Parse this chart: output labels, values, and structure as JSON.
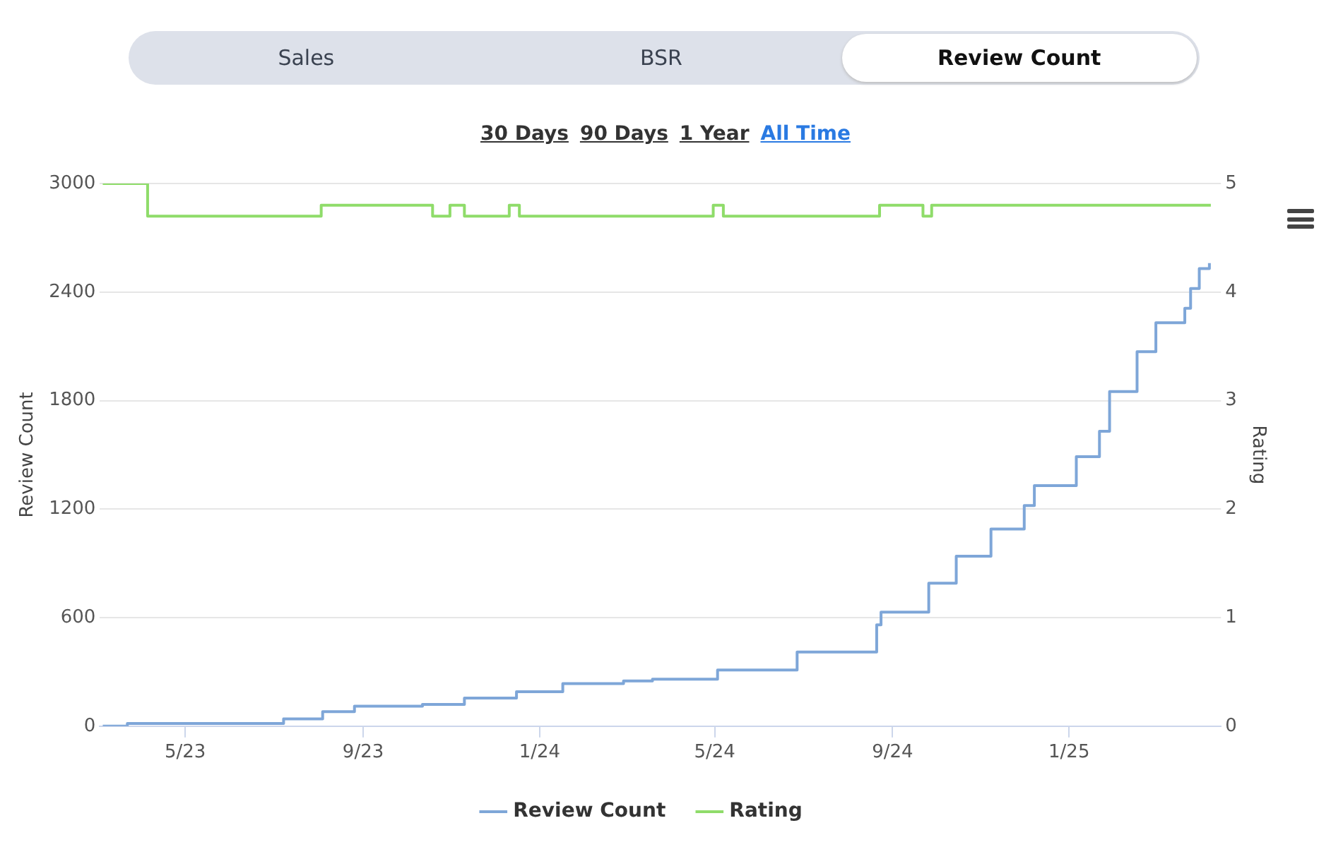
{
  "chart_data": {
    "type": "step",
    "annotations": [
      "Sales",
      "BSR",
      "Review Count",
      "30 Days",
      "90 Days",
      "1 Year",
      "All Time"
    ],
    "xlim": [
      "2023-03-03",
      "2025-04-16"
    ],
    "xticks": [
      {
        "value": "2023-05-01",
        "label": "5/23"
      },
      {
        "value": "2023-09-01",
        "label": "9/23"
      },
      {
        "value": "2024-01-01",
        "label": "1/24"
      },
      {
        "value": "2024-05-01",
        "label": "5/24"
      },
      {
        "value": "2024-09-01",
        "label": "9/24"
      },
      {
        "value": "2025-01-01",
        "label": "1/25"
      }
    ],
    "ylabel": "Review Count",
    "ylim": [
      0,
      3000
    ],
    "yticks": [
      0,
      600,
      1200,
      1800,
      2400,
      3000
    ],
    "y2label": "Rating",
    "y2lim": [
      0,
      5
    ],
    "y2ticks": [
      0,
      1,
      2,
      3,
      4,
      5
    ],
    "grid": "y",
    "legend": "bottom",
    "series": [
      {
        "name": "Review Count",
        "color": "#7ea6d8",
        "x": [
          "2023-03-05",
          "2023-03-22",
          "2023-07-08",
          "2023-08-04",
          "2023-08-26",
          "2023-10-12",
          "2023-11-10",
          "2023-12-16",
          "2024-01-17",
          "2024-02-28",
          "2024-03-19",
          "2024-05-03",
          "2024-06-27",
          "2024-08-21",
          "2024-08-24",
          "2024-09-26",
          "2024-10-15",
          "2024-11-08",
          "2024-12-01",
          "2024-12-08",
          "2025-01-06",
          "2025-01-22",
          "2025-01-29",
          "2025-02-17",
          "2025-03-02",
          "2025-03-22",
          "2025-03-26",
          "2025-04-01",
          "2025-04-08"
        ],
        "values": [
          0,
          15,
          40,
          80,
          110,
          120,
          155,
          190,
          235,
          250,
          260,
          310,
          410,
          560,
          630,
          790,
          940,
          1090,
          1220,
          1330,
          1490,
          1630,
          1850,
          2070,
          2230,
          2310,
          2420,
          2530,
          2560
        ]
      },
      {
        "name": "Rating",
        "color": "#8fdc6a",
        "axis": "y2",
        "x": [
          "2023-03-05",
          "2023-04-05",
          "2023-08-03",
          "2023-10-19",
          "2023-10-31",
          "2023-11-10",
          "2023-12-11",
          "2023-12-18",
          "2024-04-30",
          "2024-05-07",
          "2024-08-23",
          "2024-09-22",
          "2024-09-28",
          "2025-04-09"
        ],
        "values": [
          5,
          4.7,
          4.8,
          4.7,
          4.8,
          4.7,
          4.8,
          4.7,
          4.8,
          4.7,
          4.8,
          4.7,
          4.8,
          4.8
        ]
      }
    ]
  }
}
